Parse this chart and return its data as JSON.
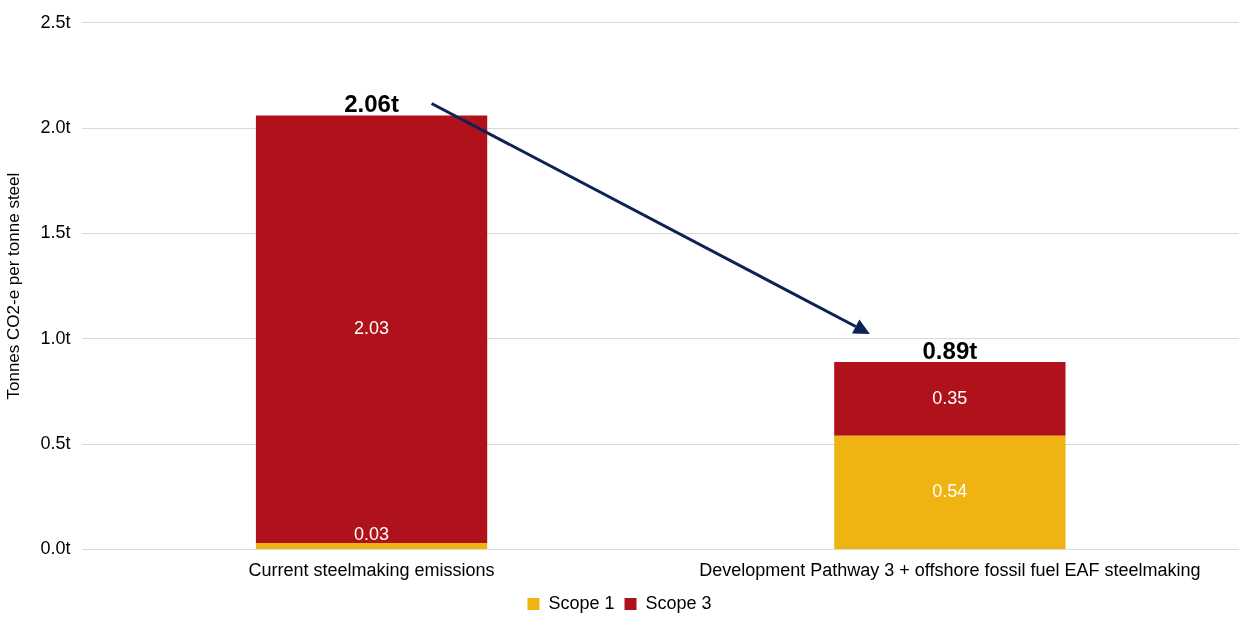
{
  "chart_data": {
    "type": "bar",
    "stacked": true,
    "ylabel": "Tonnes CO2-e per tonne steel",
    "categories": [
      "Current steelmaking emissions",
      "Development Pathway 3 + offshore fossil fuel EAF steelmaking"
    ],
    "series": [
      {
        "name": "Scope 1",
        "color": "#efb312",
        "values": [
          0.03,
          0.54
        ]
      },
      {
        "name": "Scope 3",
        "color": "#b0121b",
        "values": [
          2.03,
          0.35
        ]
      }
    ],
    "annotations": [
      {
        "text": "2.06t",
        "x": "Current steelmaking emissions",
        "y": 2.06
      },
      {
        "text": "0.89t",
        "x": "Development Pathway 3 + offshore fossil fuel EAF steelmaking",
        "y": 0.89
      }
    ],
    "data_labels": true,
    "ylim": [
      0,
      2.5
    ],
    "yticks": [
      {
        "value": 0,
        "label": "0.0t"
      },
      {
        "value": 0.5,
        "label": "0.5t"
      },
      {
        "value": 1,
        "label": "1.0t"
      },
      {
        "value": 1.5,
        "label": "1.5t"
      },
      {
        "value": 2,
        "label": "2.0t"
      },
      {
        "value": 2.5,
        "label": "2.5t"
      }
    ],
    "grid": "y",
    "legend": "bottom"
  }
}
